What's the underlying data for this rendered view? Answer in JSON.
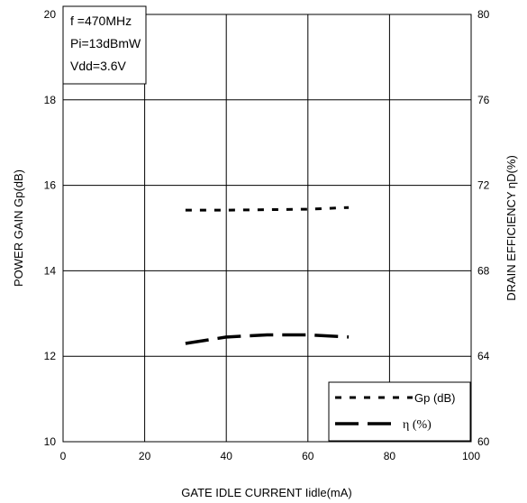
{
  "chart_data": {
    "type": "line",
    "xlabel": "GATE IDLE CURRENT Iidle(mA)",
    "ylabel_left": "POWER GAIN Gp(dB)",
    "ylabel_right": "DRAIN EFFICIENCY ηD(%)",
    "xlim": [
      0,
      100
    ],
    "ylim_left": [
      10,
      20
    ],
    "ylim_right": [
      60,
      80
    ],
    "x_ticks": [
      "0",
      "20",
      "40",
      "60",
      "80",
      "100"
    ],
    "y_left_ticks": [
      "10",
      "12",
      "14",
      "16",
      "18",
      "20"
    ],
    "y_right_ticks": [
      "60",
      "64",
      "68",
      "72",
      "76",
      "80"
    ],
    "grid": true,
    "annotation": [
      "f =470MHz",
      "Pi=13dBmW",
      "Vdd=3.6V"
    ],
    "legend_position": "bottom-right",
    "series": [
      {
        "name": "Gp (dB)",
        "axis": "left",
        "style": "dotted",
        "x": [
          30,
          40,
          50,
          60,
          70
        ],
        "y": [
          15.42,
          15.42,
          15.43,
          15.44,
          15.48
        ]
      },
      {
        "name": "η (%)",
        "axis": "right",
        "style": "dashed",
        "x": [
          30,
          40,
          50,
          60,
          70
        ],
        "y": [
          64.6,
          64.9,
          65.0,
          65.0,
          64.9
        ]
      }
    ]
  }
}
